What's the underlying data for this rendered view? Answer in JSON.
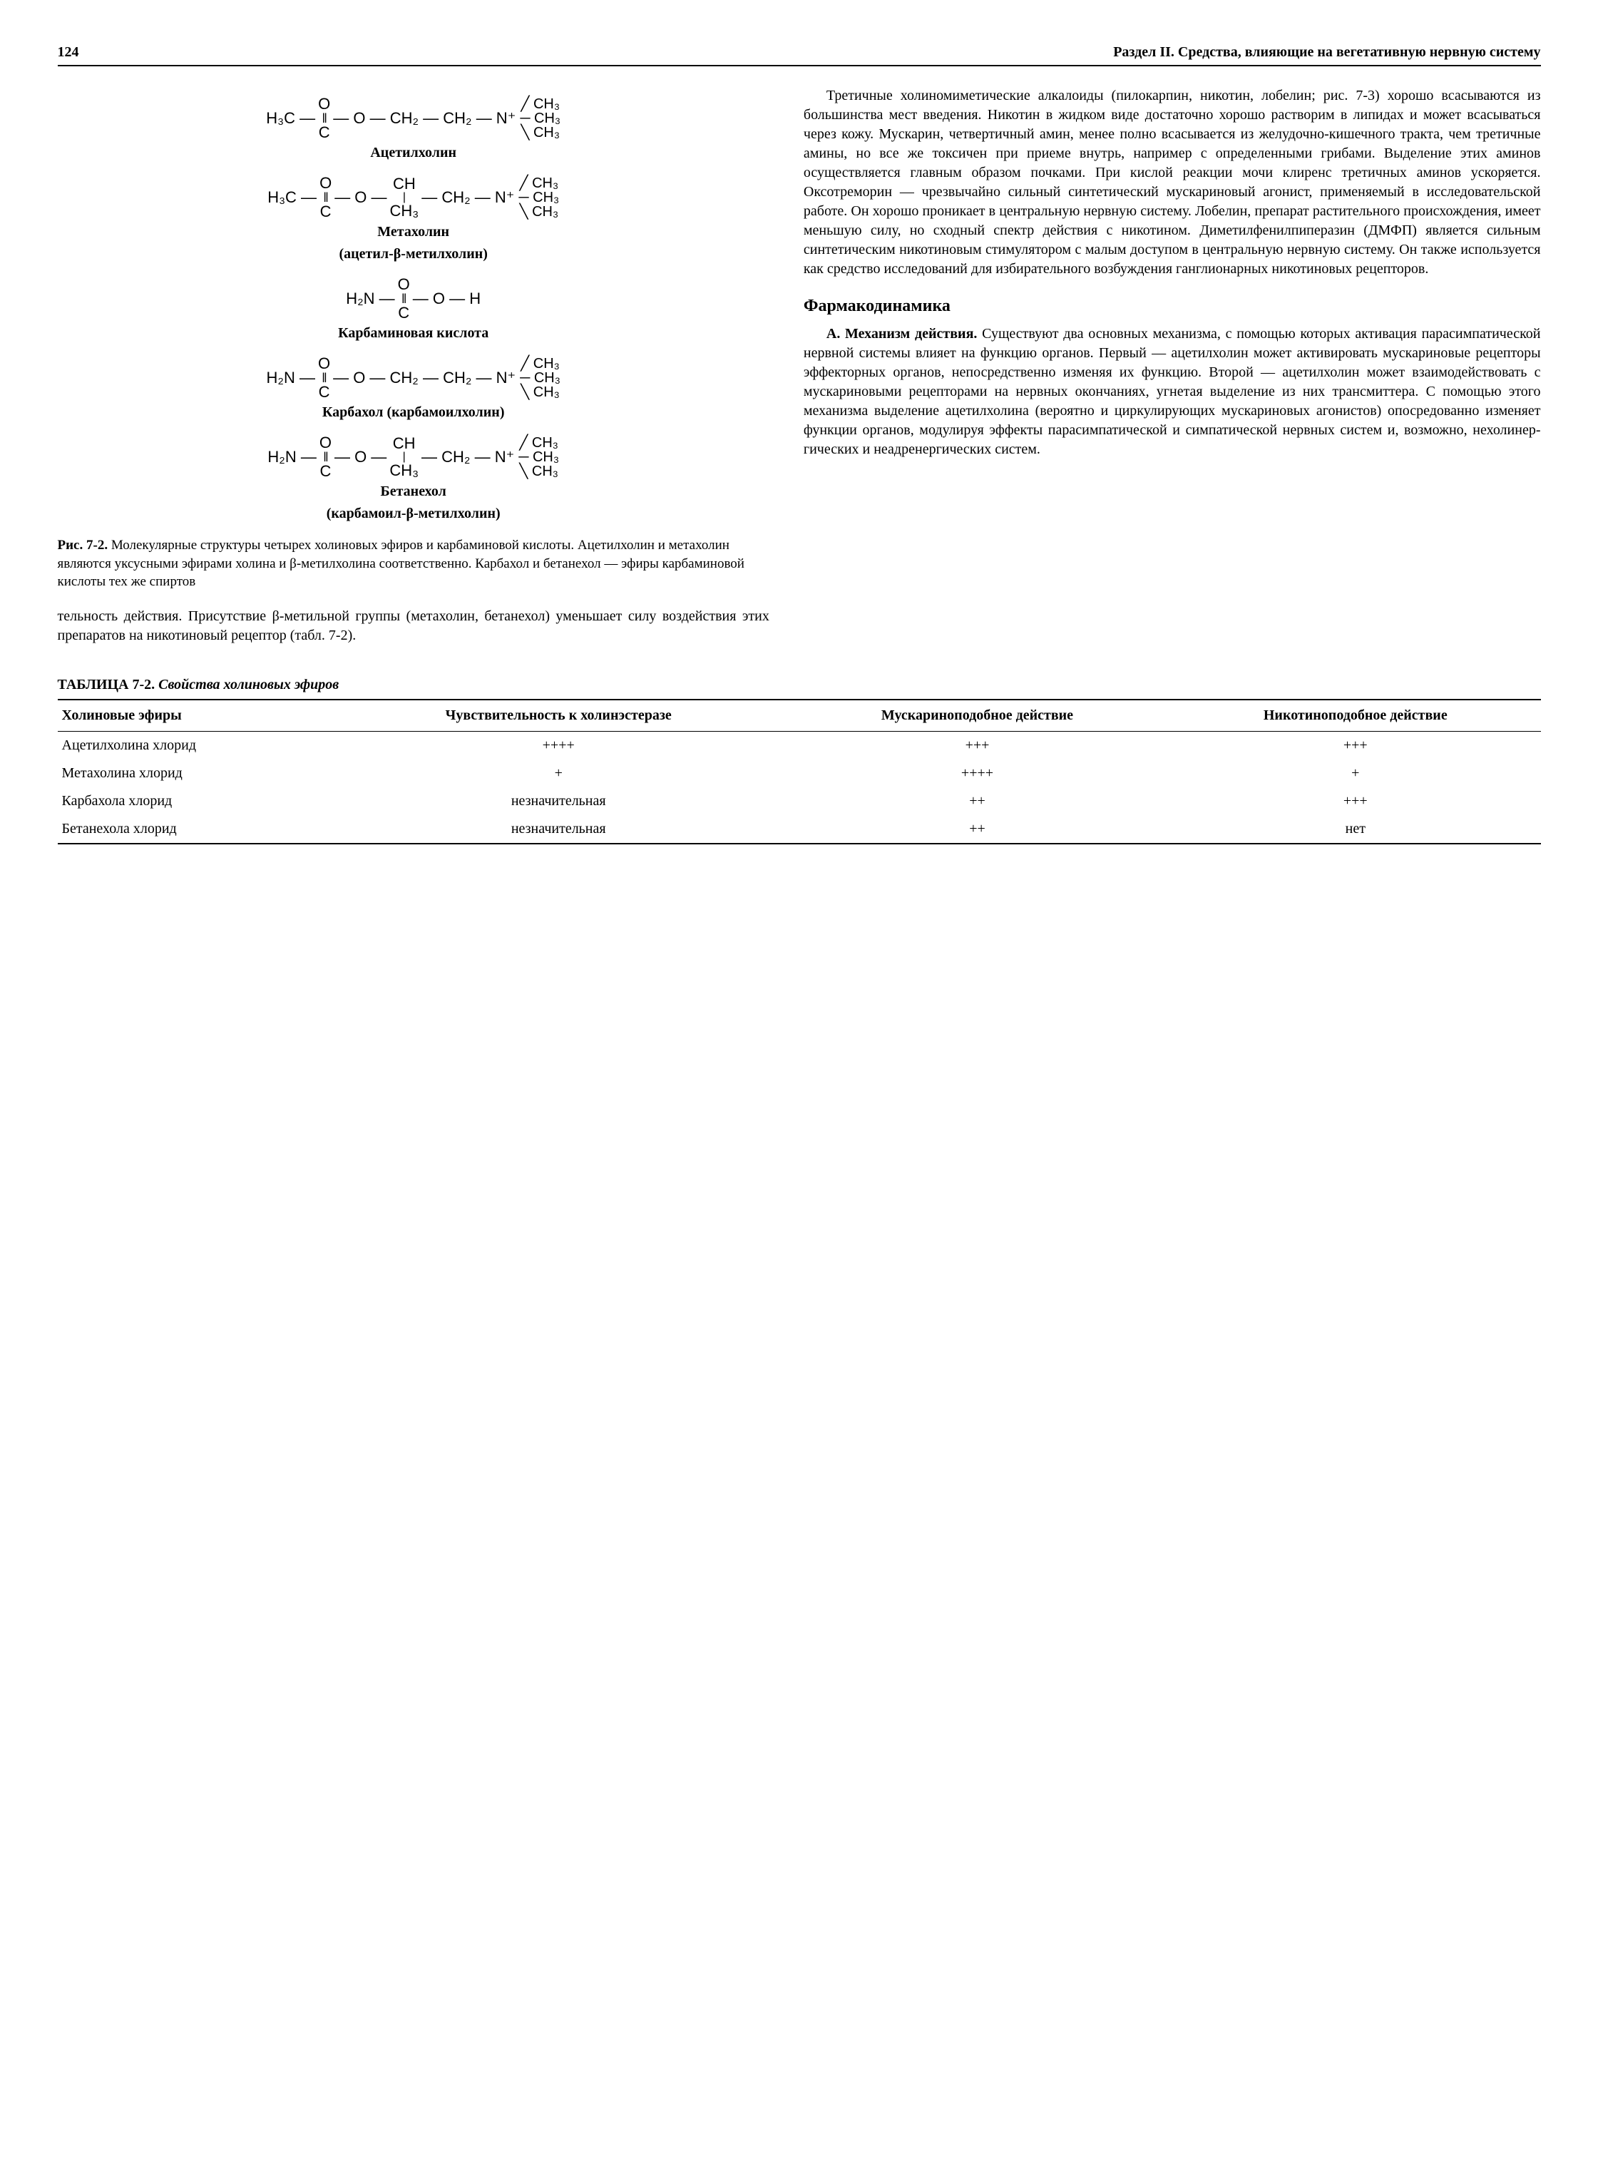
{
  "header": {
    "page_number": "124",
    "section_title": "Раздел II. Средства, влияющие на вегетативную нервную систему"
  },
  "chem": {
    "acetylcholine": {
      "left": "H₃C —",
      "mid": "— O — CH₂ — CH₂ — N⁺",
      "label": "Ацетилхолин"
    },
    "methacholine": {
      "left": "H₃C —",
      "mid_a": "— O —",
      "mid_b": "— CH₂ — N⁺",
      "label1": "Метахолин",
      "label2": "(ацетил-β-метилхолин)"
    },
    "carbamic": {
      "left": "H₂N —",
      "mid": "— O — H",
      "label": "Карбаминовая кислота"
    },
    "carbachol": {
      "left": "H₂N —",
      "mid": "— O — CH₂ — CH₂ — N⁺",
      "label": "Карбахол (карбамоилхолин)"
    },
    "bethanechol": {
      "left": "H₂N —",
      "mid_a": "— O —",
      "mid_b": "— CH₂ — N⁺",
      "label1": "Бетанехол",
      "label2": "(карбамоил-β-метилхолин)"
    },
    "ch3": "CH₃",
    "ch": "CH",
    "c": "C",
    "o": "O",
    "bar": "|",
    "dbl": "‖"
  },
  "fig_caption_bold": "Рис. 7-2.",
  "fig_caption_rest": " Молекулярные структуры четырех холиновых эфиров и карбаминовой кислоты. Ацетилхолин и мета­холин являются уксусными эфирами холина и β-метил­холина соответственно. Карбахол и бетанехол — эфиры карбаминовой кислоты тех же спиртов",
  "left_tail_para": "тельность действия. Присутствие β-метильной группы (метахолин, бетанехол) уменьшает силу воздействия этих препаратов на никотиновый ре­цептор (табл. 7-2).",
  "right_para_1": "Третичные холиномиметические алкалоиды (пилокарпин, никотин, лобелин; рис. 7-3) хорошо всасываются из большинства мест введения. Нико­тин в жидком виде достаточно хорошо растворим в липидах и может всасываться через кожу. Муска­рин, четвертичный амин, менее полно всасывается из желудочно-кишечного тракта, чем третичные амины, но все же токсичен при приеме внутрь, на­пример с определенными грибами. Выделение этих аминов осуществляется главным образом почками. При кислой реакции мочи клиренс третичных ами­нов ускоряется. Оксотреморин — чрезвычайно сильный синтетический мускариновый агонист, применяемый в исследовательской работе. Он хо­рошо проникает в центральную нервную систему. Лобелин, препарат растительного происхождения, имеет меньшую силу, но сходный спектр действия с никотином. Диметилфенилпиперазин (ДМФП) является сильным синтетическим никотиновым стимулятором с малым доступом в центральную не­рвную систему. Он также используется как сред­ство исследований для избирательного возбужде­ния ганглионарных никотиновых рецепторов.",
  "section_heading": "Фармакодинамика",
  "right_para_2_lead": "А. Механизм действия.",
  "right_para_2_rest": " Существуют два основ­ных механизма, с помощью которых активация па­расимпатической нервной системы влияет на функ­цию органов. Первый — ацетилхолин может акти­вировать мускариновые рецепторы эффекторных органов, непосредственно изменяя их функцию. Второй — ацетилхолин может взаимодействовать с мускариновыми рецепторами на нервных оконча­ниях, угнетая выделение из них трансмиттера. С по­мощью этого механизма выделение ацетилхолина (вероятно и циркулирующих мускариновых аго­нистов) опосредованно изменяет функции органов, модулируя эффекты парасимпатической и симпа­тической нервных систем и, возможно, нехолинер­гических и неадренергических систем.",
  "table": {
    "title_bold": "ТАБЛИЦА 7-2.",
    "title_italic": " Свойства холиновых эфиров",
    "columns": [
      "Холиновые эфиры",
      "Чувствительность к холинэстеразе",
      "Мускариноподобное действие",
      "Никотиноподобное действие"
    ],
    "rows": [
      [
        "Ацетилхолина хлорид",
        "++++",
        "+++",
        "+++"
      ],
      [
        "Метахолина хлорид",
        "+",
        "++++",
        "+"
      ],
      [
        "Карбахола хлорид",
        "незначительная",
        "++",
        "+++"
      ],
      [
        "Бетанехола хлорид",
        "незначительная",
        "++",
        "нет"
      ]
    ]
  }
}
